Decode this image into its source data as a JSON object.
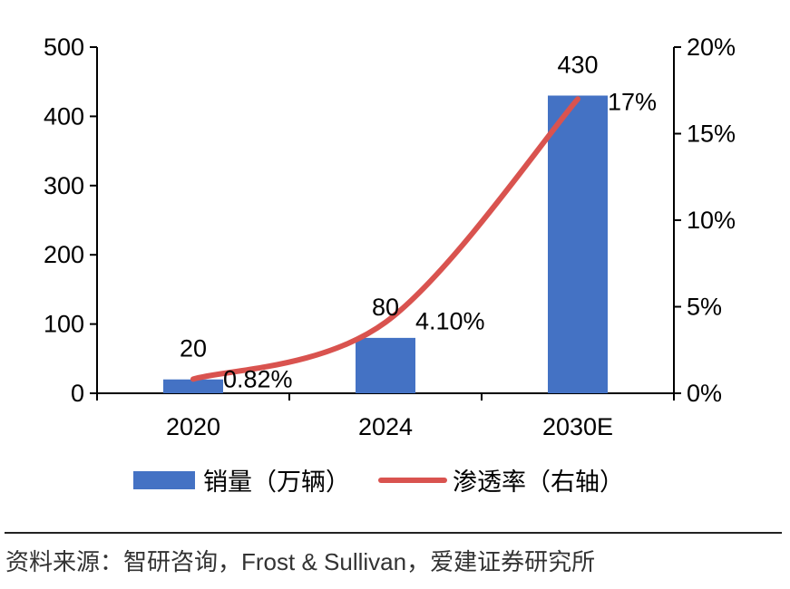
{
  "chart_data": {
    "type": "bar+line",
    "categories": [
      "2020",
      "2024",
      "2030E"
    ],
    "series": [
      {
        "name": "销量（万辆）",
        "type": "bar",
        "axis": "left",
        "values": [
          20,
          80,
          430
        ],
        "labels": [
          "20",
          "80",
          "430"
        ],
        "color": "#4472C4"
      },
      {
        "name": "渗透率（右轴）",
        "type": "line",
        "axis": "right",
        "values": [
          0.82,
          4.1,
          17
        ],
        "labels": [
          "0.82%",
          "4.10%",
          "17%"
        ],
        "color": "#D9534F"
      }
    ],
    "left_axis": {
      "ylim": [
        0,
        500
      ],
      "ticks": [
        "0",
        "100",
        "200",
        "300",
        "400",
        "500"
      ]
    },
    "right_axis": {
      "ylim": [
        0,
        20
      ],
      "ticks": [
        "0%",
        "5%",
        "10%",
        "15%",
        "20%"
      ]
    },
    "legend": "bottom",
    "grid": false
  },
  "source": "资料来源：智研咨询，Frost & Sullivan，爱建证券研究所"
}
